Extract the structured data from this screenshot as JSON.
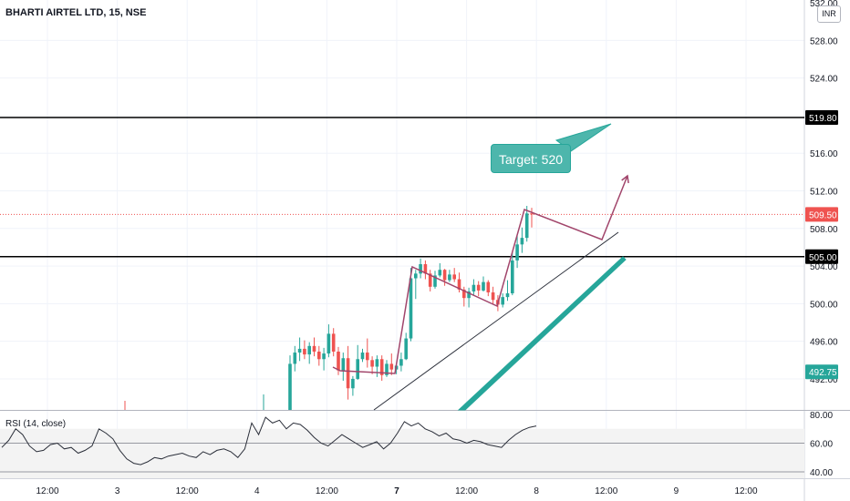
{
  "header": {
    "symbol": "BHARTI AIRTEL LTD, 15, NSE",
    "currency": "INR"
  },
  "colors": {
    "up": "#26a69a",
    "down": "#ef5350",
    "pattern": "#a1456b",
    "channel": "#26a69a",
    "level": "#000000",
    "trend": "#2a2e39"
  },
  "annotations": {
    "target_label": "Target: 520",
    "levels": [
      {
        "price": 519.8,
        "label": "519.80"
      },
      {
        "price": 505.0,
        "label": "505.00"
      }
    ],
    "current_price": {
      "price": 509.5,
      "label": "509.50",
      "color": "#ef5350"
    },
    "channel_marker": {
      "price": 492.75,
      "label": "492.75",
      "color": "#26a69a"
    }
  },
  "chart_data": {
    "type": "candlestick",
    "price_axis": {
      "range": [
        488.7,
        532.3
      ],
      "ticks": [
        {
          "value": 492,
          "label": "492.00"
        },
        {
          "value": 496,
          "label": "496.00"
        },
        {
          "value": 500,
          "label": "500.00"
        },
        {
          "value": 504,
          "label": "504.00"
        },
        {
          "value": 508,
          "label": "508.00"
        },
        {
          "value": 512,
          "label": "512.00"
        },
        {
          "value": 516,
          "label": "516.00"
        },
        {
          "value": 520,
          "label": "520.00"
        },
        {
          "value": 524,
          "label": "524.00"
        },
        {
          "value": 528,
          "label": "528.00"
        },
        {
          "value": 532,
          "label": "532.00"
        }
      ]
    },
    "time_axis": {
      "labels": [
        {
          "label": "12:00",
          "bold": false
        },
        {
          "label": "3",
          "bold": false
        },
        {
          "label": "12:00",
          "bold": false
        },
        {
          "label": "4",
          "bold": false
        },
        {
          "label": "12:00",
          "bold": false
        },
        {
          "label": "7",
          "bold": true
        },
        {
          "label": "12:00",
          "bold": false
        },
        {
          "label": "8",
          "bold": false
        },
        {
          "label": "12:00",
          "bold": false
        },
        {
          "label": "9",
          "bold": false
        },
        {
          "label": "12:00",
          "bold": false
        }
      ]
    },
    "candles": [
      [
        487.0,
        494.5,
        486.5,
        493.6
      ],
      [
        493.6,
        495.5,
        492.8,
        494.8
      ],
      [
        494.8,
        496.4,
        493.9,
        495.2
      ],
      [
        495.2,
        496.1,
        494.1,
        494.6
      ],
      [
        494.6,
        495.9,
        493.6,
        495.5
      ],
      [
        495.5,
        496.4,
        494.4,
        494.9
      ],
      [
        494.9,
        495.5,
        493.4,
        494.1
      ],
      [
        494.1,
        495.3,
        492.9,
        494.7
      ],
      [
        494.7,
        497.8,
        494.3,
        496.8
      ],
      [
        496.8,
        497.4,
        494.4,
        494.9
      ],
      [
        494.9,
        495.4,
        492.4,
        492.9
      ],
      [
        492.9,
        494.8,
        491.8,
        494.2
      ],
      [
        494.2,
        495.5,
        489.8,
        491.0
      ],
      [
        491.0,
        492.3,
        490.2,
        492.0
      ],
      [
        492.0,
        495.6,
        491.9,
        494.1
      ],
      [
        494.1,
        495.2,
        493.8,
        494.8
      ],
      [
        494.8,
        496.3,
        493.2,
        494.0
      ],
      [
        494.0,
        494.4,
        492.5,
        493.3
      ],
      [
        493.3,
        494.5,
        492.2,
        494.1
      ],
      [
        494.1,
        494.5,
        491.8,
        492.4
      ],
      [
        492.4,
        494.0,
        492.2,
        493.6
      ],
      [
        493.6,
        494.7,
        492.4,
        493.0
      ],
      [
        493.0,
        493.7,
        492.5,
        493.4
      ],
      [
        493.4,
        494.8,
        492.8,
        494.1
      ],
      [
        494.1,
        496.9,
        494.0,
        496.3
      ],
      [
        496.3,
        503.8,
        496.0,
        502.7
      ],
      [
        502.7,
        503.6,
        500.5,
        503.2
      ],
      [
        503.2,
        504.8,
        502.7,
        504.2
      ],
      [
        504.2,
        504.6,
        502.6,
        503.2
      ],
      [
        503.2,
        503.6,
        501.3,
        501.8
      ],
      [
        501.8,
        503.5,
        501.6,
        503.0
      ],
      [
        503.0,
        504.3,
        502.8,
        503.6
      ],
      [
        503.6,
        503.7,
        501.9,
        502.5
      ],
      [
        502.5,
        503.6,
        502.3,
        503.1
      ],
      [
        503.1,
        503.8,
        502.3,
        502.6
      ],
      [
        502.6,
        503.3,
        501.2,
        501.5
      ],
      [
        501.5,
        501.8,
        499.7,
        500.6
      ],
      [
        500.6,
        501.7,
        499.6,
        501.3
      ],
      [
        501.3,
        502.6,
        500.9,
        502.0
      ],
      [
        502.0,
        502.4,
        500.8,
        501.4
      ],
      [
        501.4,
        502.9,
        501.3,
        502.3
      ],
      [
        502.3,
        502.5,
        500.8,
        501.2
      ],
      [
        501.2,
        501.8,
        500.0,
        500.4
      ],
      [
        500.4,
        500.9,
        499.2,
        499.9
      ],
      [
        499.9,
        501.1,
        499.6,
        500.7
      ],
      [
        500.7,
        502.5,
        500.3,
        501.1
      ],
      [
        501.1,
        505.5,
        500.9,
        504.6
      ],
      [
        504.6,
        507.2,
        503.8,
        506.3
      ],
      [
        506.3,
        508.1,
        505.4,
        507.0
      ],
      [
        507.0,
        510.4,
        506.6,
        509.6
      ],
      [
        509.6,
        510.2,
        508.1,
        509.5
      ]
    ]
  },
  "rsi": {
    "title": "RSI (14, close)",
    "ticks": [
      {
        "value": 40,
        "label": "40.00"
      },
      {
        "value": 60,
        "label": "60.00"
      },
      {
        "value": 80,
        "label": "80.00"
      }
    ],
    "bands": [
      70,
      30
    ],
    "values": [
      57,
      62,
      70,
      66,
      58,
      54,
      55,
      59,
      60,
      56,
      57,
      53,
      55,
      58,
      70,
      67,
      63,
      55,
      49,
      46,
      45,
      47,
      50,
      49,
      51,
      52,
      53,
      51,
      50,
      54,
      52,
      55,
      56,
      54,
      50,
      56,
      74,
      66,
      78,
      74,
      76,
      70,
      74,
      73,
      69,
      64,
      60,
      58,
      62,
      66,
      63,
      60,
      57,
      59,
      61,
      56,
      60,
      67,
      75,
      72,
      74,
      70,
      68,
      65,
      67,
      63,
      62,
      60,
      62,
      61,
      59,
      58,
      57,
      62,
      66,
      69,
      71,
      72
    ]
  }
}
